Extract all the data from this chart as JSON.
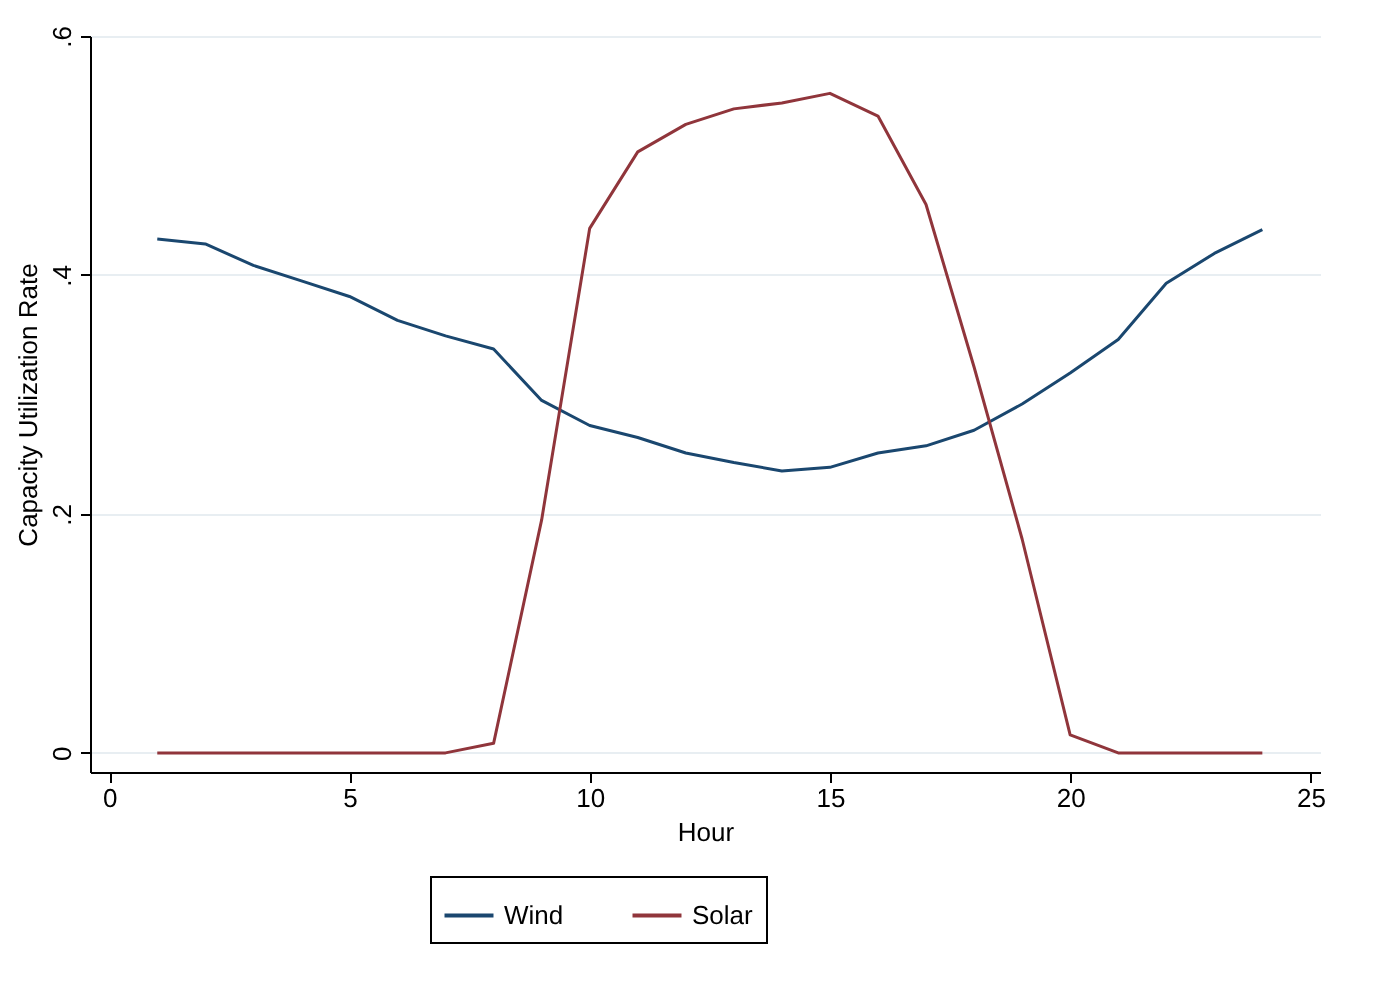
{
  "chart_data": {
    "type": "line",
    "xlabel": "Hour",
    "ylabel": "Capacity Utilization Rate",
    "x": [
      1,
      2,
      3,
      4,
      5,
      6,
      7,
      8,
      9,
      10,
      11,
      12,
      13,
      14,
      15,
      16,
      17,
      18,
      19,
      20,
      21,
      22,
      23,
      24
    ],
    "series": [
      {
        "name": "Wind",
        "color": "#1a476f",
        "values": [
          0.43,
          0.426,
          0.408,
          0.395,
          0.382,
          0.362,
          0.349,
          0.338,
          0.295,
          0.274,
          0.264,
          0.251,
          0.243,
          0.236,
          0.239,
          0.251,
          0.257,
          0.27,
          0.292,
          0.318,
          0.346,
          0.393,
          0.418,
          0.438
        ]
      },
      {
        "name": "Solar",
        "color": "#90353b",
        "values": [
          0,
          0,
          0,
          0,
          0,
          0,
          0,
          0.008,
          0.195,
          0.439,
          0.503,
          0.526,
          0.539,
          0.544,
          0.552,
          0.533,
          0.459,
          0.323,
          0.179,
          0.015,
          0,
          0,
          0,
          0
        ]
      }
    ],
    "xlim": [
      -0.4,
      25.2
    ],
    "xticks": [
      0,
      5,
      10,
      15,
      20,
      25
    ],
    "ylim": [
      -0.016,
      0.6
    ],
    "yticks": [
      {
        "value": 0,
        "label": "0"
      },
      {
        "value": 0.2,
        "label": ".2"
      },
      {
        "value": 0.4,
        "label": ".4"
      },
      {
        "value": 0.6,
        "label": ".6"
      }
    ],
    "grid": "y",
    "legend": "bottom",
    "marker": "none",
    "line_style": "solid"
  }
}
